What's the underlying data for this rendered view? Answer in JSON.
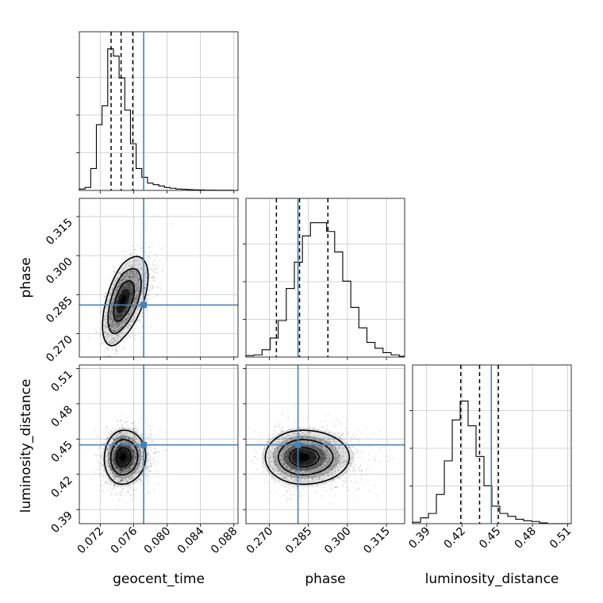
{
  "chart_data": {
    "type": "corner",
    "parameters": [
      "geocent_time",
      "phase",
      "luminosity_distance"
    ],
    "truths": {
      "geocent_time": 0.0772,
      "phase": 0.281,
      "luminosity_distance": 0.445
    },
    "colors": {
      "truth": "#4682b4",
      "hist": "#000000",
      "grid": "#c8c8c8"
    },
    "grid": true,
    "panels": {
      "geocent_time_hist": {
        "xlim": [
          0.0695,
          0.0885
        ],
        "xticks": [
          0.072,
          0.076,
          0.08,
          0.084,
          0.088
        ],
        "xtick_labels": [
          "0.072",
          "0.076",
          "0.080",
          "0.084",
          "0.088"
        ],
        "bin_edges_start": 0.0695,
        "bin_width": 0.00068,
        "counts": [
          0.01,
          0.02,
          0.15,
          0.45,
          0.58,
          0.97,
          0.92,
          0.77,
          0.55,
          0.32,
          0.15,
          0.09,
          0.05,
          0.04,
          0.03,
          0.02,
          0.015,
          0.01,
          0.008,
          0.006,
          0.004,
          0.003,
          0.002,
          0.002,
          0.001,
          0.001,
          0.001,
          0.0
        ],
        "ymax": 1.0,
        "quantiles": [
          0.0733,
          0.0745,
          0.0759
        ]
      },
      "phase_hist": {
        "xlim": [
          0.261,
          0.322
        ],
        "xticks": [
          0.27,
          0.285,
          0.3,
          0.315
        ],
        "xtick_labels": [
          "0.270",
          "0.285",
          "0.300",
          "0.315"
        ],
        "bin_edges_start": 0.261,
        "bin_width": 0.0031,
        "counts": [
          0.01,
          0.015,
          0.05,
          0.13,
          0.25,
          0.47,
          0.65,
          0.83,
          0.92,
          0.92,
          0.86,
          0.72,
          0.52,
          0.34,
          0.2,
          0.1,
          0.06,
          0.03,
          0.015,
          0.005
        ],
        "ymax": 1.0,
        "quantiles": [
          0.2727,
          0.2816,
          0.2925
        ]
      },
      "luminosity_distance_hist": {
        "xlim": [
          0.378,
          0.513
        ],
        "xticks": [
          0.39,
          0.42,
          0.45,
          0.48,
          0.51
        ],
        "xtick_labels": [
          "0.39",
          "0.42",
          "0.45",
          "0.48",
          "0.51"
        ],
        "bin_edges_start": 0.378,
        "bin_width": 0.00675,
        "counts": [
          0.01,
          0.04,
          0.07,
          0.2,
          0.43,
          0.71,
          0.84,
          0.67,
          0.46,
          0.26,
          0.12,
          0.07,
          0.05,
          0.03,
          0.02,
          0.015,
          0.005,
          0.0,
          0.0,
          0.0
        ],
        "ymax": 1.0,
        "quantiles": [
          0.419,
          0.435,
          0.451
        ]
      },
      "phase_vs_geocent_time": {
        "mean": [
          0.0747,
          0.2825
        ],
        "sigma": [
          0.0012,
          0.0078
        ],
        "rho": 0.55,
        "peak": [
          0.0743,
          0.2825
        ],
        "contours": [
          1.0,
          1.6,
          2.2
        ]
      },
      "luminosity_distance_vs_geocent_time": {
        "mean": [
          0.0747,
          0.4345
        ],
        "sigma": [
          0.0012,
          0.0115
        ],
        "rho": 0.05,
        "peak": [
          0.0743,
          0.4345
        ],
        "contours": [
          0.7,
          1.3,
          2.0
        ]
      },
      "luminosity_distance_vs_phase": {
        "mean": [
          0.2828,
          0.4345
        ],
        "sigma": [
          0.0078,
          0.0115
        ],
        "rho": 0.0,
        "peak": [
          0.2828,
          0.4345
        ],
        "contours": [
          0.7,
          1.3,
          2.0
        ]
      }
    },
    "y_axes": {
      "phase": {
        "ylim": [
          0.261,
          0.322
        ],
        "yticks": [
          0.27,
          0.285,
          0.3,
          0.315
        ],
        "ytick_labels": [
          "0.270",
          "0.285",
          "0.300",
          "0.315"
        ]
      },
      "luminosity_distance": {
        "ylim": [
          0.378,
          0.513
        ],
        "yticks": [
          0.39,
          0.42,
          0.45,
          0.48,
          0.51
        ],
        "ytick_labels": [
          "0.39",
          "0.42",
          "0.45",
          "0.48",
          "0.51"
        ]
      }
    },
    "xlabels": [
      "geocent_time",
      "phase",
      "luminosity_distance"
    ],
    "ylabels": [
      "phase",
      "luminosity_distance"
    ]
  }
}
